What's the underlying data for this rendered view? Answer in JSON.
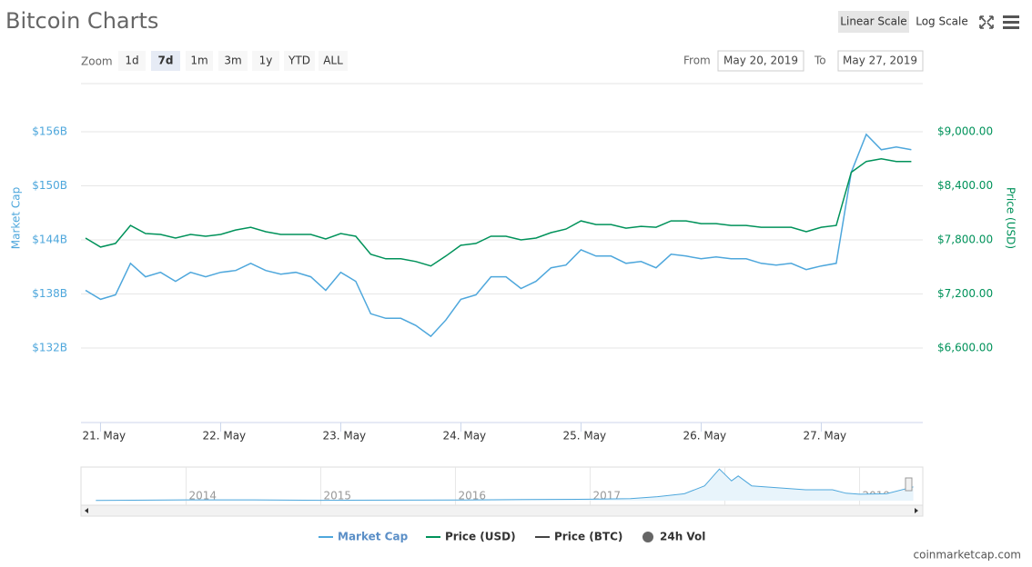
{
  "ui": {
    "title": "Bitcoin Charts",
    "scale_buttons": [
      "Linear Scale",
      "Log Scale"
    ],
    "zoom_label": "Zoom",
    "zoom_buttons": [
      "1d",
      "7d",
      "1m",
      "3m",
      "1y",
      "YTD",
      "ALL"
    ],
    "zoom_selected": "7d",
    "from_label": "From",
    "from_value": "May 20, 2019",
    "to_label": "To",
    "to_value": "May 27, 2019",
    "watermark": "coinmarketcap.com"
  },
  "chart_data": {
    "type": "line",
    "ylabel": "Market Cap",
    "y2label": "Price (USD)",
    "categories": [
      null,
      "21. May",
      null,
      null,
      null,
      null,
      null,
      null,
      null,
      "22. May",
      null,
      null,
      null,
      null,
      null,
      null,
      null,
      "23. May",
      null,
      null,
      null,
      null,
      null,
      null,
      null,
      "24. May",
      null,
      null,
      null,
      null,
      null,
      null,
      null,
      "25. May",
      null,
      null,
      null,
      null,
      null,
      null,
      null,
      "26. May",
      null,
      null,
      null,
      null,
      null,
      null,
      null,
      "27. May",
      null,
      null,
      null,
      null,
      null,
      null
    ],
    "ylim": [
      123.73,
      161.34
    ],
    "yticks": [
      {
        "value": 132,
        "label": "$132B"
      },
      {
        "value": 138,
        "label": "$138B"
      },
      {
        "value": 144,
        "label": "$144B"
      },
      {
        "value": 150,
        "label": "$150B"
      },
      {
        "value": 156,
        "label": "$156B"
      }
    ],
    "y2lim": [
      5773,
      9534
    ],
    "y2ticks": [
      {
        "value": 6600,
        "label": "$6,600.00"
      },
      {
        "value": 7200,
        "label": "$7,200.00"
      },
      {
        "value": 7800,
        "label": "$7,800.00"
      },
      {
        "value": 8400,
        "label": "$8,400.00"
      },
      {
        "value": 9000,
        "label": "$9,000.00"
      }
    ],
    "grid": true,
    "series": [
      {
        "name": "Market Cap",
        "color": "#4ea7dc",
        "axis": "y",
        "values": [
          138.4,
          137.4,
          137.9,
          141.4,
          139.9,
          140.4,
          139.4,
          140.4,
          139.9,
          140.4,
          140.6,
          141.4,
          140.6,
          140.2,
          140.4,
          139.9,
          138.4,
          140.4,
          139.4,
          135.8,
          135.3,
          135.3,
          134.5,
          133.3,
          135.1,
          137.4,
          137.9,
          139.9,
          139.9,
          138.6,
          139.4,
          140.9,
          141.2,
          142.9,
          142.2,
          142.2,
          141.4,
          141.6,
          140.9,
          142.4,
          142.2,
          141.9,
          142.1,
          141.9,
          141.9,
          141.4,
          141.2,
          141.4,
          140.7,
          141.1,
          141.4,
          151.5,
          155.7,
          154.0,
          154.3,
          154.0
        ]
      },
      {
        "name": "Price (USD)",
        "color": "#00925a",
        "axis": "y2",
        "values": [
          7820,
          7720,
          7760,
          7960,
          7870,
          7860,
          7820,
          7860,
          7840,
          7860,
          7910,
          7940,
          7890,
          7860,
          7860,
          7860,
          7810,
          7870,
          7840,
          7640,
          7590,
          7590,
          7560,
          7510,
          7620,
          7740,
          7760,
          7840,
          7840,
          7800,
          7820,
          7880,
          7920,
          8010,
          7970,
          7970,
          7930,
          7950,
          7940,
          8010,
          8010,
          7980,
          7980,
          7960,
          7960,
          7940,
          7940,
          7940,
          7890,
          7940,
          7960,
          8550,
          8670,
          8700,
          8670,
          8670
        ]
      }
    ],
    "legend_extra": [
      {
        "name": "Price (BTC)",
        "color": "#444444"
      },
      {
        "name": "24h Vol",
        "color": "#666666"
      }
    ],
    "navigator": {
      "color": "#4ea7dc",
      "xlim": [
        2013.22,
        2019.47
      ],
      "ylim": [
        0,
        340
      ],
      "xticks": [
        2014,
        2015,
        2016,
        2017,
        2018,
        2019
      ],
      "x": [
        2013.33,
        2014,
        2014.5,
        2015,
        2016,
        2016.5,
        2017,
        2017.3,
        2017.5,
        2017.7,
        2017.85,
        2017.96,
        2018.05,
        2018.1,
        2018.2,
        2018.4,
        2018.6,
        2018.8,
        2018.9,
        2019,
        2019.2,
        2019.4
      ],
      "values": [
        1.5,
        8,
        8,
        4,
        6,
        11,
        15,
        20,
        40,
        70,
        150,
        320,
        200,
        250,
        150,
        130,
        110,
        110,
        75,
        65,
        70,
        140
      ]
    }
  }
}
